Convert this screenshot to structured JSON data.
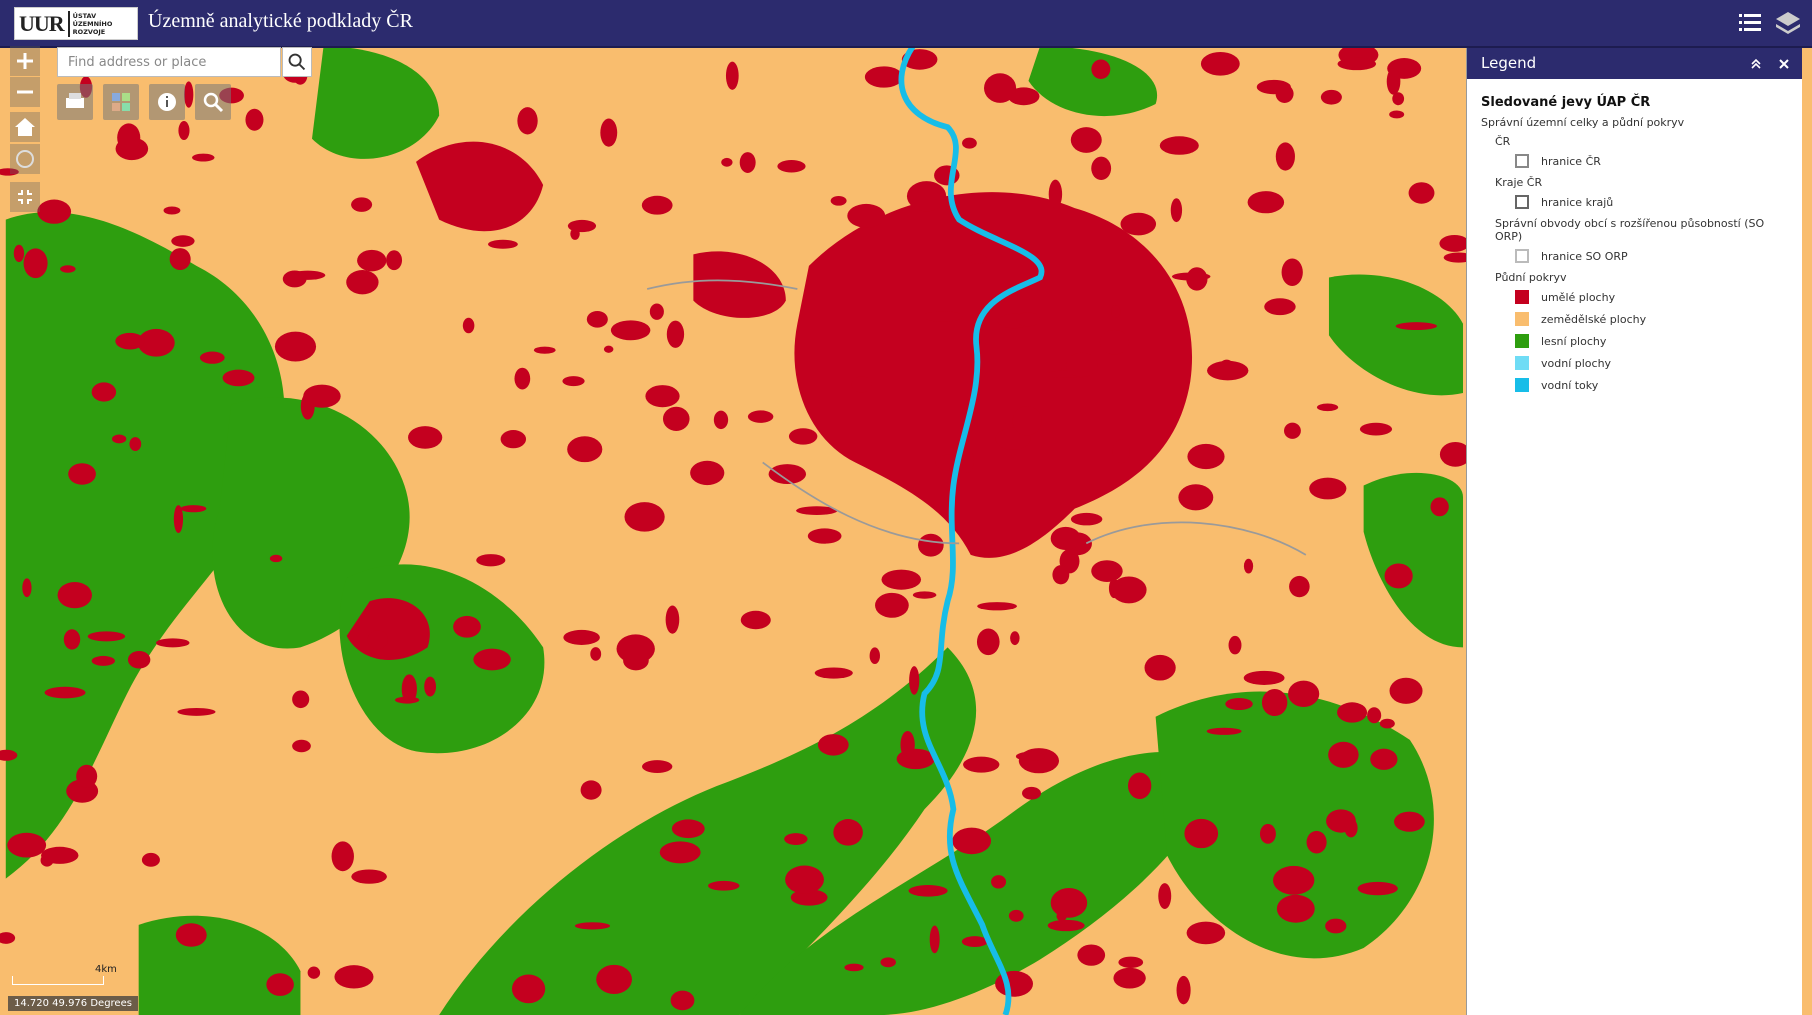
{
  "header": {
    "logo_mark": "UUR",
    "logo_lines": [
      "ÚSTAV",
      "ÚZEMNÍHO",
      "ROZVOJE"
    ],
    "title": "Územně analytické podklady ČR"
  },
  "search": {
    "placeholder": "Find address or place"
  },
  "legend": {
    "title": "Legend",
    "layer": "Sledované jevy ÚAP ČR",
    "group": "Správní územní celky a půdní pokryv",
    "sections": [
      {
        "heading": "ČR",
        "items": [
          {
            "label": "hranice ČR",
            "color": "#888888",
            "outline": true
          }
        ]
      },
      {
        "heading": "Kraje ČR",
        "items": [
          {
            "label": "hranice krajů",
            "color": "#666666",
            "outline": true
          }
        ]
      },
      {
        "heading": "Správní obvody obcí s rozšířenou působností (SO ORP)",
        "items": [
          {
            "label": "hranice SO ORP",
            "color": "#bbbbbb",
            "outline": true
          }
        ]
      },
      {
        "heading": "Půdní pokryv",
        "items": [
          {
            "label": "umělé plochy",
            "color": "#c4001f"
          },
          {
            "label": "zemědělské plochy",
            "color": "#f9bd6e"
          },
          {
            "label": "lesní plochy",
            "color": "#2e9e0f"
          },
          {
            "label": "vodní plochy",
            "color": "#6fdcf5"
          },
          {
            "label": "vodní toky",
            "color": "#17bde8"
          }
        ]
      }
    ]
  },
  "map": {
    "scale": "4km",
    "coordinates": "14.720 49.976 Degrees"
  }
}
